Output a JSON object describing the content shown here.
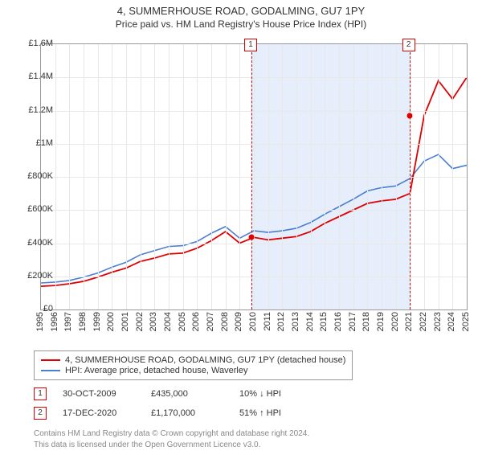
{
  "title": "4, SUMMERHOUSE ROAD, GODALMING, GU7 1PY",
  "subtitle": "Price paid vs. HM Land Registry's House Price Index (HPI)",
  "chart": {
    "type": "line",
    "background_color": "#ffffff",
    "grid_color": "#e8e8e8",
    "border_color": "#999999",
    "band_color": "#e6eefb",
    "ylim": [
      0,
      1600000
    ],
    "ytick_step": 200000,
    "ytick_labels": [
      "£0",
      "£200K",
      "£400K",
      "£600K",
      "£800K",
      "£1M",
      "£1.2M",
      "£1.4M",
      "£1.6M"
    ],
    "xlim": [
      1995,
      2025
    ],
    "years": [
      1995,
      1996,
      1997,
      1998,
      1999,
      2000,
      2001,
      2002,
      2003,
      2004,
      2005,
      2006,
      2007,
      2008,
      2009,
      2010,
      2011,
      2012,
      2013,
      2014,
      2015,
      2016,
      2017,
      2018,
      2019,
      2020,
      2021,
      2022,
      2023,
      2024,
      2025
    ],
    "band_start": 2009.83,
    "band_end": 2020.96,
    "series": {
      "red": {
        "color": "#e00000",
        "width": 1.8,
        "values": [
          140000,
          145000,
          155000,
          170000,
          195000,
          225000,
          250000,
          290000,
          310000,
          335000,
          340000,
          370000,
          415000,
          470000,
          400000,
          435000,
          420000,
          430000,
          440000,
          470000,
          520000,
          560000,
          600000,
          640000,
          655000,
          665000,
          700000,
          1170000,
          1380000,
          1270000,
          1400000
        ]
      },
      "blue": {
        "color": "#4a7fd1",
        "width": 1.6,
        "values": [
          160000,
          165000,
          175000,
          195000,
          220000,
          255000,
          285000,
          330000,
          355000,
          380000,
          385000,
          410000,
          460000,
          500000,
          430000,
          475000,
          465000,
          475000,
          490000,
          525000,
          575000,
          620000,
          665000,
          715000,
          735000,
          745000,
          790000,
          895000,
          935000,
          850000,
          870000
        ]
      }
    },
    "markers": [
      {
        "num": "1",
        "year": 2009.83,
        "value": 435000
      },
      {
        "num": "2",
        "year": 2020.96,
        "value": 1170000
      }
    ]
  },
  "legend": {
    "row1": {
      "color": "#e00000",
      "label": "4, SUMMERHOUSE ROAD, GODALMING, GU7 1PY (detached house)"
    },
    "row2": {
      "color": "#4a7fd1",
      "label": "HPI: Average price, detached house, Waverley"
    }
  },
  "sales": [
    {
      "num": "1",
      "date": "30-OCT-2009",
      "price": "£435,000",
      "delta": "10% ↓ HPI"
    },
    {
      "num": "2",
      "date": "17-DEC-2020",
      "price": "£1,170,000",
      "delta": "51% ↑ HPI"
    }
  ],
  "footnote1": "Contains HM Land Registry data © Crown copyright and database right 2024.",
  "footnote2": "This data is licensed under the Open Government Licence v3.0."
}
